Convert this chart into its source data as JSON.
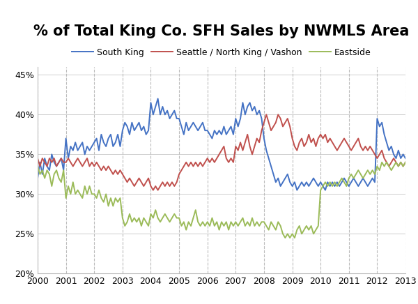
{
  "title": "% of Total King Co. SFH Sales by NWMLS Area",
  "series": {
    "South King": {
      "color": "#4472C4",
      "label": "South King"
    },
    "Seattle": {
      "color": "#C0504D",
      "label": "Seattle / North King / Vashon"
    },
    "Eastside": {
      "color": "#9BBB59",
      "label": "Eastside"
    }
  },
  "ylim": [
    0.2,
    0.46
  ],
  "yticks": [
    0.2,
    0.25,
    0.3,
    0.35,
    0.4,
    0.45
  ],
  "background_color": "#FFFFFF",
  "grid_color": "#BBBBBB",
  "title_fontsize": 15,
  "legend_fontsize": 9,
  "tick_fontsize": 9,
  "line_width": 1.4,
  "south_king": [
    0.32,
    0.34,
    0.325,
    0.345,
    0.335,
    0.33,
    0.35,
    0.34,
    0.335,
    0.34,
    0.345,
    0.33,
    0.37,
    0.345,
    0.36,
    0.355,
    0.365,
    0.355,
    0.36,
    0.365,
    0.35,
    0.36,
    0.355,
    0.36,
    0.365,
    0.37,
    0.355,
    0.375,
    0.365,
    0.36,
    0.37,
    0.375,
    0.36,
    0.365,
    0.375,
    0.36,
    0.38,
    0.39,
    0.385,
    0.375,
    0.39,
    0.38,
    0.385,
    0.39,
    0.38,
    0.385,
    0.375,
    0.38,
    0.415,
    0.4,
    0.41,
    0.42,
    0.4,
    0.41,
    0.4,
    0.405,
    0.395,
    0.4,
    0.405,
    0.395,
    0.395,
    0.385,
    0.375,
    0.39,
    0.38,
    0.385,
    0.39,
    0.385,
    0.38,
    0.385,
    0.39,
    0.38,
    0.38,
    0.375,
    0.37,
    0.38,
    0.375,
    0.38,
    0.375,
    0.385,
    0.375,
    0.38,
    0.385,
    0.375,
    0.395,
    0.385,
    0.395,
    0.415,
    0.4,
    0.41,
    0.415,
    0.405,
    0.41,
    0.4,
    0.405,
    0.395,
    0.37,
    0.355,
    0.345,
    0.335,
    0.325,
    0.315,
    0.32,
    0.31,
    0.315,
    0.32,
    0.325,
    0.315,
    0.31,
    0.315,
    0.305,
    0.31,
    0.315,
    0.31,
    0.315,
    0.31,
    0.315,
    0.32,
    0.315,
    0.31,
    0.315,
    0.31,
    0.305,
    0.315,
    0.31,
    0.315,
    0.31,
    0.315,
    0.31,
    0.315,
    0.32,
    0.315,
    0.31,
    0.315,
    0.32,
    0.315,
    0.31,
    0.315,
    0.32,
    0.315,
    0.31,
    0.315,
    0.32,
    0.315,
    0.395,
    0.385,
    0.39,
    0.375,
    0.365,
    0.355,
    0.36,
    0.35,
    0.345,
    0.355,
    0.345,
    0.35,
    0.345
  ],
  "seattle": [
    0.345,
    0.335,
    0.345,
    0.34,
    0.335,
    0.345,
    0.34,
    0.345,
    0.335,
    0.34,
    0.345,
    0.34,
    0.34,
    0.345,
    0.34,
    0.335,
    0.34,
    0.345,
    0.34,
    0.335,
    0.34,
    0.345,
    0.335,
    0.34,
    0.335,
    0.34,
    0.335,
    0.33,
    0.335,
    0.33,
    0.335,
    0.33,
    0.325,
    0.33,
    0.325,
    0.33,
    0.325,
    0.32,
    0.315,
    0.32,
    0.315,
    0.31,
    0.315,
    0.32,
    0.315,
    0.31,
    0.315,
    0.32,
    0.31,
    0.305,
    0.31,
    0.305,
    0.31,
    0.315,
    0.31,
    0.315,
    0.31,
    0.315,
    0.31,
    0.315,
    0.325,
    0.33,
    0.335,
    0.34,
    0.335,
    0.34,
    0.335,
    0.34,
    0.335,
    0.34,
    0.335,
    0.34,
    0.345,
    0.34,
    0.345,
    0.34,
    0.345,
    0.35,
    0.355,
    0.36,
    0.345,
    0.34,
    0.345,
    0.34,
    0.36,
    0.355,
    0.365,
    0.355,
    0.365,
    0.375,
    0.36,
    0.35,
    0.36,
    0.37,
    0.365,
    0.38,
    0.39,
    0.4,
    0.39,
    0.38,
    0.385,
    0.39,
    0.4,
    0.395,
    0.385,
    0.39,
    0.395,
    0.385,
    0.37,
    0.36,
    0.355,
    0.365,
    0.37,
    0.36,
    0.365,
    0.375,
    0.365,
    0.37,
    0.36,
    0.37,
    0.375,
    0.37,
    0.375,
    0.365,
    0.37,
    0.365,
    0.36,
    0.355,
    0.36,
    0.365,
    0.37,
    0.365,
    0.36,
    0.355,
    0.36,
    0.365,
    0.37,
    0.36,
    0.355,
    0.36,
    0.355,
    0.36,
    0.355,
    0.35,
    0.345,
    0.35,
    0.355,
    0.345,
    0.34,
    0.335,
    0.34,
    0.345,
    0.34,
    0.335,
    0.34,
    0.335,
    0.34
  ],
  "eastside": [
    0.335,
    0.325,
    0.33,
    0.32,
    0.33,
    0.325,
    0.31,
    0.325,
    0.33,
    0.32,
    0.315,
    0.33,
    0.295,
    0.31,
    0.3,
    0.315,
    0.3,
    0.305,
    0.3,
    0.295,
    0.31,
    0.3,
    0.31,
    0.3,
    0.3,
    0.295,
    0.305,
    0.295,
    0.29,
    0.3,
    0.285,
    0.295,
    0.285,
    0.295,
    0.29,
    0.295,
    0.27,
    0.26,
    0.265,
    0.275,
    0.265,
    0.27,
    0.265,
    0.27,
    0.26,
    0.27,
    0.265,
    0.26,
    0.275,
    0.27,
    0.28,
    0.27,
    0.265,
    0.27,
    0.275,
    0.27,
    0.265,
    0.27,
    0.275,
    0.27,
    0.27,
    0.26,
    0.265,
    0.255,
    0.265,
    0.26,
    0.27,
    0.28,
    0.265,
    0.26,
    0.265,
    0.26,
    0.265,
    0.26,
    0.27,
    0.26,
    0.265,
    0.255,
    0.265,
    0.26,
    0.265,
    0.255,
    0.265,
    0.26,
    0.265,
    0.26,
    0.265,
    0.27,
    0.26,
    0.265,
    0.26,
    0.27,
    0.26,
    0.265,
    0.26,
    0.265,
    0.265,
    0.26,
    0.255,
    0.265,
    0.26,
    0.255,
    0.265,
    0.26,
    0.25,
    0.245,
    0.25,
    0.245,
    0.25,
    0.245,
    0.255,
    0.26,
    0.25,
    0.255,
    0.26,
    0.255,
    0.26,
    0.25,
    0.255,
    0.26,
    0.305,
    0.31,
    0.315,
    0.31,
    0.315,
    0.31,
    0.315,
    0.31,
    0.315,
    0.32,
    0.315,
    0.31,
    0.32,
    0.325,
    0.32,
    0.325,
    0.33,
    0.325,
    0.32,
    0.325,
    0.33,
    0.325,
    0.33,
    0.325,
    0.335,
    0.33,
    0.34,
    0.335,
    0.34,
    0.335,
    0.33,
    0.335,
    0.34,
    0.335,
    0.34,
    0.335,
    0.34
  ],
  "years": [
    2000,
    2001,
    2002,
    2003,
    2004,
    2005,
    2006,
    2007,
    2008,
    2009,
    2010,
    2011,
    2012,
    2013
  ]
}
